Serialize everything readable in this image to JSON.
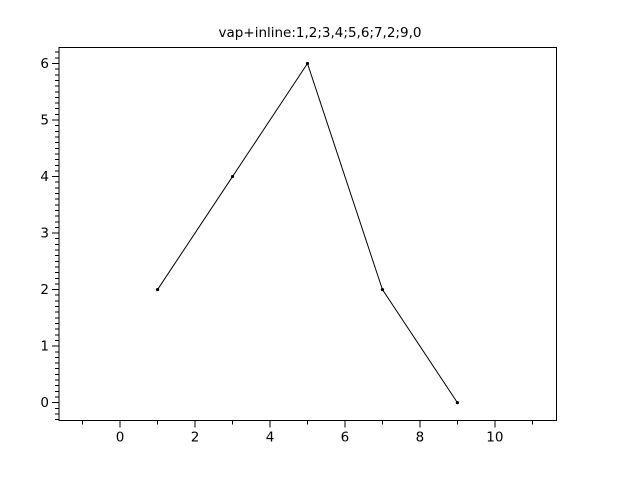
{
  "figure": {
    "background": "#ffffff"
  },
  "chart_data": {
    "type": "line",
    "title": "vap+inline:1,2;3,4;5,6;7,2;9,0",
    "series": [
      {
        "name": "vap+inline",
        "x": [
          1,
          3,
          5,
          7,
          9
        ],
        "y": [
          2,
          4,
          6,
          2,
          0
        ]
      }
    ],
    "xlabel": "",
    "ylabel": "",
    "xlim": [
      -1.63,
      11.65
    ],
    "ylim": [
      -0.32,
      6.28
    ],
    "x_ticks": {
      "major": [
        0,
        2,
        4,
        6,
        8,
        10
      ],
      "major_labels": [
        "0",
        "2",
        "4",
        "6",
        "8",
        "10"
      ],
      "minor": [
        -1,
        1,
        3,
        5,
        7,
        9,
        11
      ]
    },
    "y_ticks": {
      "major": [
        0,
        1,
        2,
        3,
        4,
        5,
        6
      ],
      "major_labels": [
        "0",
        "1",
        "2",
        "3",
        "4",
        "5",
        "6"
      ],
      "minor_step": 0.1,
      "minor_range": [
        -0.3,
        6.2
      ]
    },
    "grid": false,
    "legend_position": "none",
    "line_color": "#000000",
    "marker": "dot",
    "marker_color": "#000000",
    "axis_color": "#000000",
    "text_color": "#000000"
  }
}
